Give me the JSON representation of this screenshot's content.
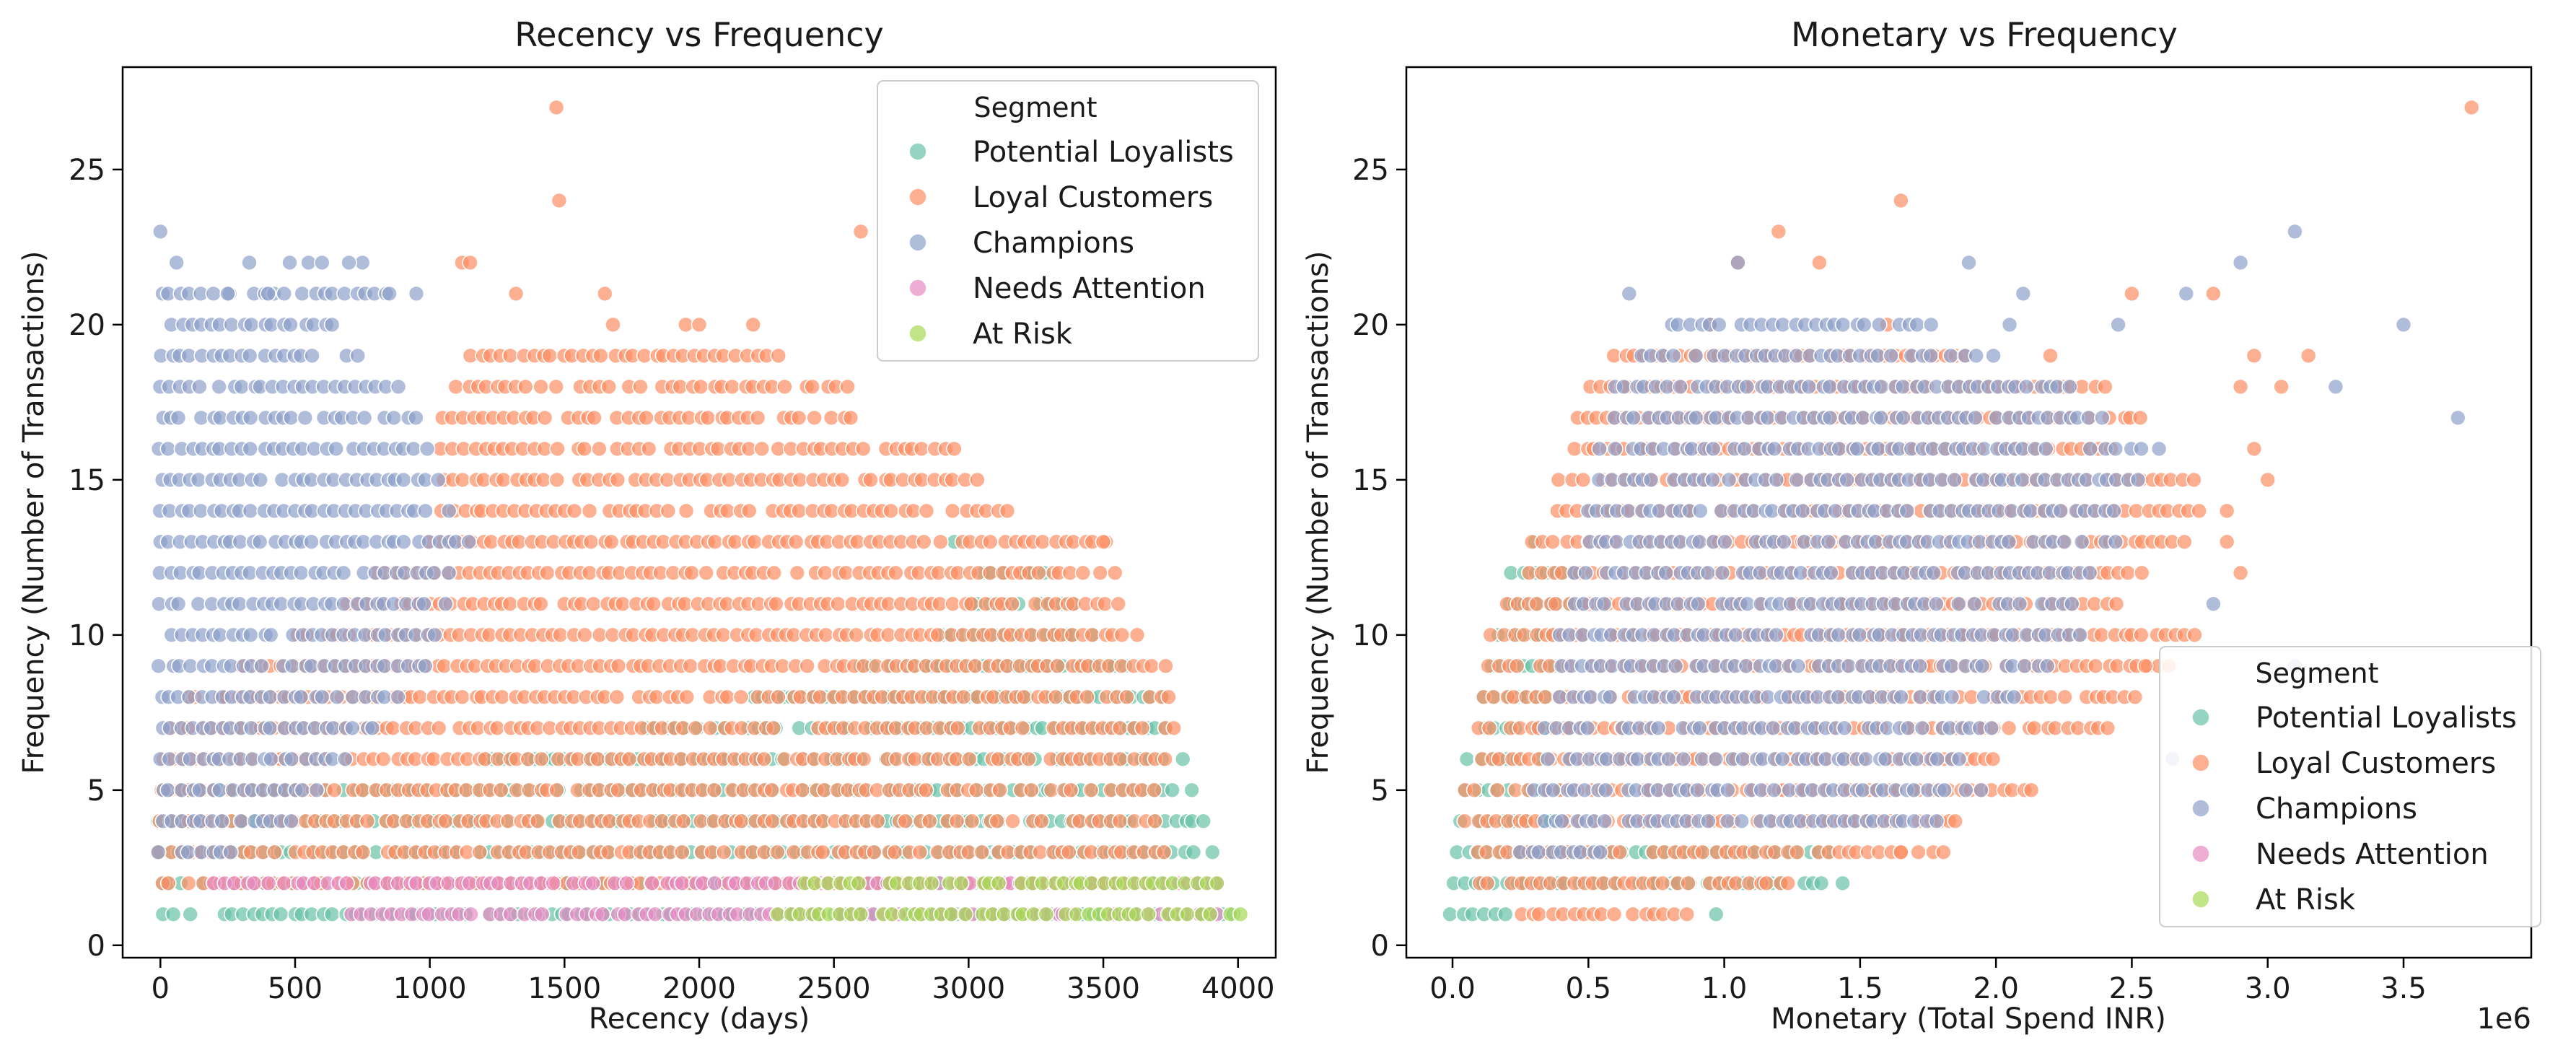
{
  "chart_data": [
    {
      "type": "scatter",
      "title": "Recency vs Frequency",
      "xlabel": "Recency (days)",
      "ylabel": "Frequency (Number of Transactions)",
      "xlim": [
        -140,
        4140
      ],
      "ylim": [
        -0.4,
        28.3
      ],
      "x_ticks": [
        0,
        500,
        1000,
        1500,
        2000,
        2500,
        3000,
        3500,
        4000
      ],
      "y_ticks": [
        0,
        5,
        10,
        15,
        20,
        25
      ],
      "x_tick_labels": [
        "0",
        "500",
        "1000",
        "1500",
        "2000",
        "2500",
        "3000",
        "3500",
        "4000"
      ],
      "y_tick_labels": [
        "0",
        "5",
        "10",
        "15",
        "20",
        "25"
      ],
      "legend": {
        "title": "Segment",
        "placement": "upper right"
      },
      "series": [
        {
          "name": "Potential Loyalists",
          "color": "#66c2a5",
          "bands": [
            [
              1,
              0,
              4000
            ],
            [
              2,
              0,
              3950
            ],
            [
              3,
              0,
              3930
            ],
            [
              4,
              0,
              3880
            ],
            [
              5,
              0,
              3850
            ],
            [
              6,
              1200,
              3800
            ],
            [
              7,
              1800,
              3760
            ],
            [
              8,
              2200,
              3730
            ],
            [
              9,
              2600,
              3620
            ],
            [
              10,
              2900,
              3500
            ],
            [
              11,
              3000,
              3400
            ],
            [
              12,
              3050,
              3300
            ],
            [
              13,
              2950,
              2950
            ]
          ]
        },
        {
          "name": "Loyal Customers",
          "color": "#fc8d62",
          "bands": [
            [
              2,
              0,
              3700
            ],
            [
              3,
              0,
              3750
            ],
            [
              4,
              0,
              3700
            ],
            [
              5,
              0,
              3700
            ],
            [
              6,
              0,
              3750
            ],
            [
              7,
              0,
              3770
            ],
            [
              8,
              100,
              3770
            ],
            [
              9,
              300,
              3720
            ],
            [
              10,
              500,
              3620
            ],
            [
              11,
              700,
              3560
            ],
            [
              12,
              800,
              3550
            ],
            [
              13,
              1000,
              3520
            ],
            [
              14,
              1050,
              3150
            ],
            [
              15,
              1050,
              3050
            ],
            [
              16,
              1050,
              2980
            ],
            [
              17,
              1050,
              2600
            ],
            [
              18,
              1100,
              2550
            ],
            [
              19,
              1150,
              2300
            ]
          ],
          "points": [
            [
              1470,
              27
            ],
            [
              1480,
              24
            ],
            [
              2600,
              23
            ],
            [
              1120,
              22
            ],
            [
              1150,
              22
            ],
            [
              1650,
              21
            ],
            [
              1320,
              21
            ],
            [
              1950,
              20
            ],
            [
              2000,
              20
            ],
            [
              2200,
              20
            ],
            [
              1680,
              20
            ],
            [
              3500,
              13
            ]
          ]
        },
        {
          "name": "Champions",
          "color": "#8da0cb",
          "bands": [
            [
              3,
              0,
              300
            ],
            [
              4,
              0,
              500
            ],
            [
              5,
              0,
              600
            ],
            [
              6,
              0,
              700
            ],
            [
              7,
              0,
              800
            ],
            [
              8,
              0,
              900
            ],
            [
              9,
              0,
              1000
            ],
            [
              10,
              0,
              1050
            ],
            [
              11,
              0,
              1100
            ],
            [
              12,
              0,
              1100
            ],
            [
              13,
              0,
              1150
            ],
            [
              14,
              0,
              1100
            ],
            [
              15,
              0,
              1050
            ],
            [
              16,
              0,
              1000
            ],
            [
              17,
              0,
              950
            ],
            [
              18,
              0,
              900
            ],
            [
              19,
              0,
              750
            ],
            [
              20,
              0,
              650
            ],
            [
              21,
              0,
              850
            ]
          ],
          "points": [
            [
              0,
              23
            ],
            [
              60,
              22
            ],
            [
              330,
              22
            ],
            [
              480,
              22
            ],
            [
              550,
              22
            ],
            [
              600,
              22
            ],
            [
              750,
              22
            ],
            [
              700,
              22
            ],
            [
              250,
              21
            ],
            [
              400,
              21
            ],
            [
              850,
              21
            ],
            [
              950,
              21
            ]
          ]
        },
        {
          "name": "Needs Attention",
          "color": "#e78ac3",
          "bands": [
            [
              1,
              700,
              3950
            ],
            [
              2,
              200,
              3950
            ]
          ]
        },
        {
          "name": "At Risk",
          "color": "#a6d854",
          "bands": [
            [
              1,
              2300,
              4020
            ],
            [
              2,
              2400,
              3950
            ]
          ]
        }
      ]
    },
    {
      "type": "scatter",
      "title": "Monetary vs Frequency",
      "xlabel": "Monetary (Total Spend INR)",
      "ylabel": "Frequency (Number of Transactions)",
      "x_offset_label": "1e6",
      "xlim": [
        -0.17,
        3.97
      ],
      "ylim": [
        -0.4,
        28.3
      ],
      "x_ticks": [
        0,
        0.5,
        1,
        1.5,
        2,
        2.5,
        3,
        3.5
      ],
      "y_ticks": [
        0,
        5,
        10,
        15,
        20,
        25
      ],
      "x_tick_labels": [
        "0.0",
        "0.5",
        "1.0",
        "1.5",
        "2.0",
        "2.5",
        "3.0",
        "3.5"
      ],
      "y_tick_labels": [
        "0",
        "5",
        "10",
        "15",
        "20",
        "25"
      ],
      "legend": {
        "title": "Segment",
        "placement": "lower right"
      },
      "series": [
        {
          "name": "Potential Loyalists",
          "color": "#66c2a5",
          "bands": [
            [
              1,
              0.0,
              0.2
            ],
            [
              2,
              0.0,
              1.45
            ],
            [
              3,
              0.02,
              1.4
            ],
            [
              4,
              0.03,
              0.4
            ],
            [
              5,
              0.05,
              0.4
            ],
            [
              6,
              0.06,
              0.35
            ],
            [
              7,
              0.08,
              0.35
            ],
            [
              8,
              0.12,
              0.35
            ],
            [
              9,
              0.15,
              0.4
            ],
            [
              10,
              0.18,
              0.4
            ],
            [
              11,
              0.2,
              0.45
            ],
            [
              12,
              0.22,
              0.45
            ],
            [
              13,
              0.22,
              0.3
            ]
          ],
          "points": [
            [
              0.97,
              1
            ]
          ]
        },
        {
          "name": "Loyal Customers",
          "color": "#fc8d62",
          "bands": [
            [
              1,
              0.25,
              0.88
            ],
            [
              2,
              0.1,
              1.25
            ],
            [
              3,
              0.05,
              1.8
            ],
            [
              4,
              0.05,
              1.85
            ],
            [
              5,
              0.05,
              2.15
            ],
            [
              6,
              0.1,
              2.05
            ],
            [
              7,
              0.1,
              2.45
            ],
            [
              8,
              0.12,
              2.55
            ],
            [
              9,
              0.13,
              2.65
            ],
            [
              10,
              0.15,
              2.75
            ],
            [
              11,
              0.2,
              2.5
            ],
            [
              12,
              0.25,
              2.55
            ],
            [
              13,
              0.3,
              2.7
            ],
            [
              14,
              0.35,
              2.75
            ],
            [
              15,
              0.4,
              2.75
            ],
            [
              16,
              0.45,
              2.45
            ],
            [
              17,
              0.45,
              2.55
            ],
            [
              18,
              0.5,
              2.4
            ],
            [
              19,
              0.6,
              1.9
            ]
          ],
          "points": [
            [
              3.75,
              27
            ],
            [
              1.65,
              24
            ],
            [
              1.2,
              23
            ],
            [
              1.05,
              22
            ],
            [
              1.35,
              22
            ],
            [
              2.5,
              21
            ],
            [
              2.8,
              21
            ],
            [
              0.95,
              20
            ],
            [
              1.6,
              20
            ],
            [
              2.2,
              19
            ],
            [
              2.95,
              19
            ],
            [
              3.15,
              19
            ],
            [
              2.9,
              18
            ],
            [
              3.05,
              18
            ],
            [
              2.95,
              16
            ],
            [
              3.0,
              15
            ],
            [
              2.85,
              14
            ],
            [
              2.9,
              12
            ],
            [
              2.85,
              13
            ],
            [
              2.55,
              9
            ],
            [
              1.65,
              3
            ],
            [
              1.85,
              4
            ]
          ]
        },
        {
          "name": "Champions",
          "color": "#8da0cb",
          "bands": [
            [
              3,
              0.25,
              0.6
            ],
            [
              4,
              0.3,
              1.8
            ],
            [
              5,
              0.3,
              1.95
            ],
            [
              6,
              0.35,
              1.9
            ],
            [
              7,
              0.35,
              2.0
            ],
            [
              8,
              0.4,
              2.1
            ],
            [
              9,
              0.4,
              2.2
            ],
            [
              10,
              0.4,
              2.3
            ],
            [
              11,
              0.45,
              2.3
            ],
            [
              12,
              0.45,
              2.35
            ],
            [
              13,
              0.5,
              2.45
            ],
            [
              14,
              0.5,
              2.45
            ],
            [
              15,
              0.55,
              2.55
            ],
            [
              16,
              0.55,
              2.55
            ],
            [
              17,
              0.6,
              2.4
            ],
            [
              18,
              0.6,
              2.3
            ],
            [
              19,
              0.7,
              2.0
            ],
            [
              20,
              0.8,
              1.75
            ]
          ],
          "points": [
            [
              3.1,
              23
            ],
            [
              1.05,
              22
            ],
            [
              1.9,
              22
            ],
            [
              2.9,
              22
            ],
            [
              0.65,
              21
            ],
            [
              2.1,
              21
            ],
            [
              2.7,
              21
            ],
            [
              2.45,
              20
            ],
            [
              3.5,
              20
            ],
            [
              2.05,
              20
            ],
            [
              3.25,
              18
            ],
            [
              3.7,
              17
            ],
            [
              2.6,
              16
            ],
            [
              2.8,
              11
            ],
            [
              2.65,
              6
            ],
            [
              3.1,
              9
            ]
          ]
        },
        {
          "name": "Needs Attention",
          "color": "#e78ac3",
          "bands": []
        },
        {
          "name": "At Risk",
          "color": "#a6d854",
          "bands": []
        }
      ]
    }
  ]
}
